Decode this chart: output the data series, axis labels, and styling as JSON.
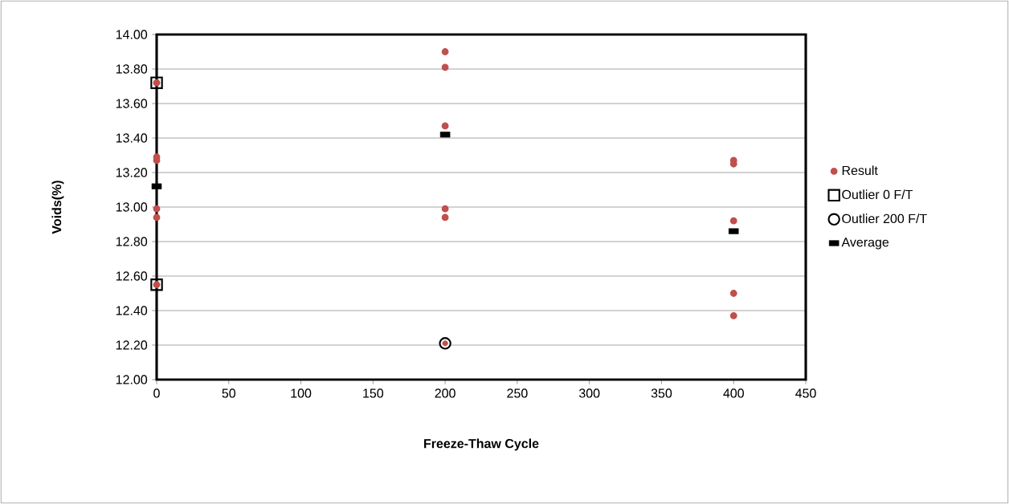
{
  "chart_data": {
    "type": "scatter",
    "xlabel": "Freeze-Thaw Cycle",
    "ylabel": "Voids(%)",
    "xlim": [
      0,
      450
    ],
    "xticks": [
      0,
      50,
      100,
      150,
      200,
      250,
      300,
      350,
      400,
      450
    ],
    "ylim": [
      12,
      14
    ],
    "yticks": [
      {
        "value": 12,
        "label": "12.00"
      },
      {
        "value": 12.2,
        "label": "12.20"
      },
      {
        "value": 12.4,
        "label": "12.40"
      },
      {
        "value": 12.6,
        "label": "12.60"
      },
      {
        "value": 12.8,
        "label": "12.80"
      },
      {
        "value": 13,
        "label": "13.00"
      },
      {
        "value": 13.2,
        "label": "13.20"
      },
      {
        "value": 13.4,
        "label": "13.40"
      },
      {
        "value": 13.6,
        "label": "13.60"
      },
      {
        "value": 13.8,
        "label": "13.80"
      },
      {
        "value": 14,
        "label": "14.00"
      }
    ],
    "grid": "y",
    "legend": "right",
    "series": [
      {
        "name": "Result",
        "color": "#c0504d",
        "marker": "circle",
        "x": [
          0,
          0,
          0,
          0,
          0,
          0,
          200,
          200,
          200,
          200,
          200,
          200,
          400,
          400,
          400,
          400,
          400
        ],
        "values": [
          13.72,
          13.29,
          13.27,
          12.99,
          12.94,
          12.55,
          13.9,
          13.81,
          13.47,
          12.99,
          12.94,
          12.21,
          13.27,
          13.25,
          12.92,
          12.5,
          12.37
        ]
      },
      {
        "name": "Outlier 0 F/T",
        "color": "#000000",
        "marker": "square",
        "x": [
          0,
          0
        ],
        "values": [
          13.72,
          12.55
        ]
      },
      {
        "name": "Outlier 200 F/T",
        "color": "#000000",
        "marker": "circle",
        "x": [
          200
        ],
        "values": [
          12.21
        ]
      },
      {
        "name": "Average",
        "color": "#000000",
        "x": [
          0,
          200,
          400
        ],
        "values": [
          13.12,
          13.42,
          12.86
        ]
      }
    ]
  }
}
